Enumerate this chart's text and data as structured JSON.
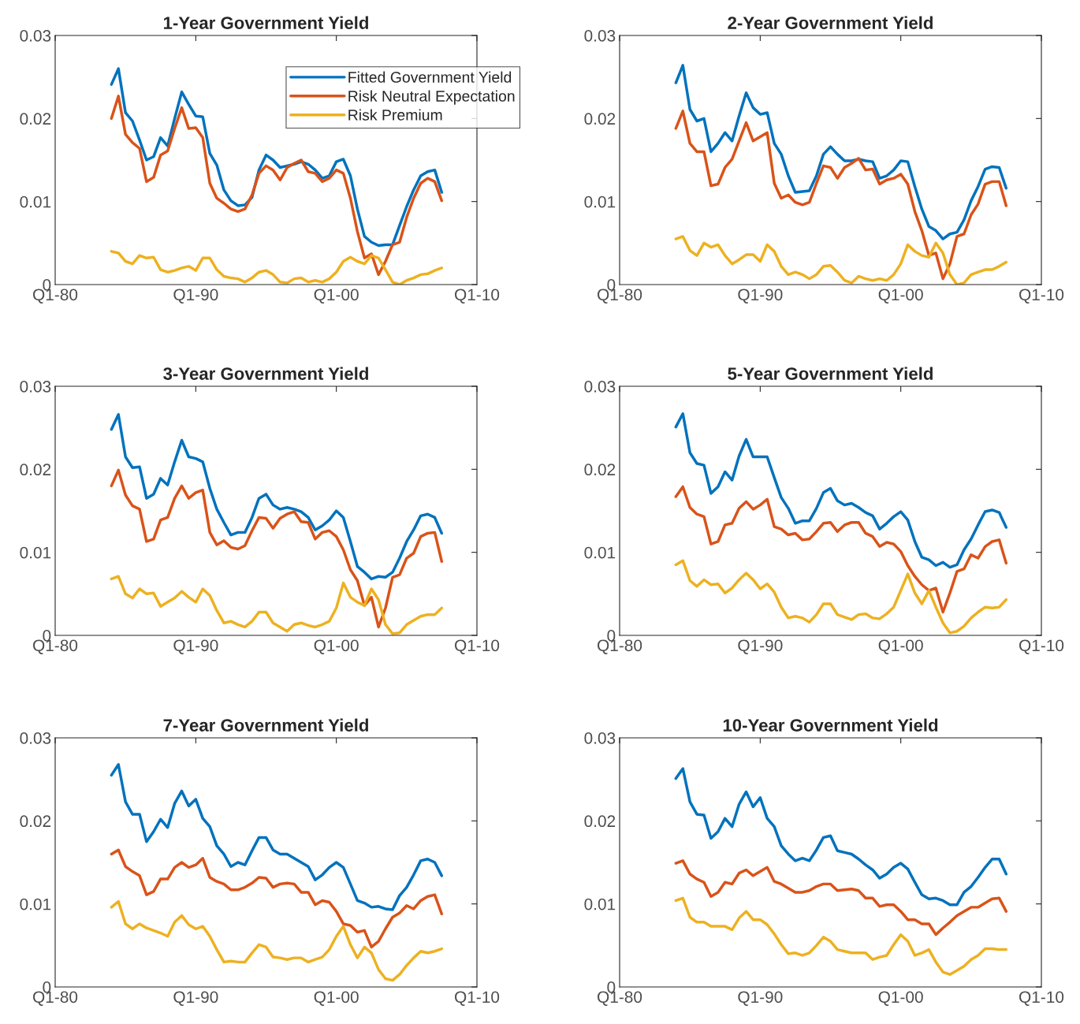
{
  "chart_data": [
    {
      "type": "line",
      "title": "1-Year Government Yield",
      "legend": "top right",
      "x": [
        "1984-01",
        "1984-07",
        "1985-01",
        "1985-07",
        "1986-01",
        "1986-07",
        "1987-01",
        "1987-07",
        "1988-01",
        "1988-07",
        "1989-01",
        "1989-07",
        "1990-01",
        "1990-07",
        "1991-01",
        "1991-07",
        "1992-01",
        "1992-07",
        "1993-01",
        "1993-07",
        "1994-01",
        "1994-07",
        "1995-01",
        "1995-07",
        "1996-01",
        "1996-07",
        "1997-01",
        "1997-07",
        "1998-01",
        "1998-07",
        "1999-01",
        "1999-07",
        "2000-01",
        "2000-07",
        "2001-01",
        "2001-07",
        "2002-01",
        "2002-07",
        "2003-01",
        "2003-07",
        "2004-01",
        "2004-07",
        "2005-01",
        "2005-07",
        "2006-01",
        "2006-07",
        "2007-01",
        "2007-07"
      ],
      "xlim": [
        "1980-01",
        "2010-01"
      ],
      "xticks": [
        {
          "value": "1980-01",
          "label": "Q1-80"
        },
        {
          "value": "1990-01",
          "label": "Q1-90"
        },
        {
          "value": "2000-01",
          "label": "Q1-00"
        },
        {
          "value": "2010-01",
          "label": "Q1-10"
        }
      ],
      "ylim": [
        0,
        0.03
      ],
      "yticks": [
        0,
        0.01,
        0.02,
        0.03
      ],
      "series": [
        {
          "name": "Fitted Government Yield",
          "color": "#0072bd",
          "values": [
            0.0241,
            0.026,
            0.0207,
            0.0197,
            0.0174,
            0.015,
            0.0154,
            0.0177,
            0.0167,
            0.02,
            0.0232,
            0.0217,
            0.0203,
            0.0202,
            0.0158,
            0.0144,
            0.0114,
            0.0101,
            0.0095,
            0.0096,
            0.0105,
            0.0138,
            0.0156,
            0.015,
            0.0141,
            0.0143,
            0.0145,
            0.0148,
            0.0145,
            0.0138,
            0.0128,
            0.0131,
            0.0148,
            0.0151,
            0.0131,
            0.0091,
            0.0058,
            0.0051,
            0.0047,
            0.0048,
            0.0048,
            0.0071,
            0.0094,
            0.0114,
            0.0131,
            0.0136,
            0.0138,
            0.0111
          ]
        },
        {
          "name": "Risk Neutral Expectation",
          "color": "#d95319",
          "values": [
            0.02,
            0.0227,
            0.0181,
            0.0171,
            0.0164,
            0.0124,
            0.0129,
            0.0156,
            0.0161,
            0.0188,
            0.0213,
            0.0188,
            0.0189,
            0.0177,
            0.0122,
            0.0104,
            0.0098,
            0.0091,
            0.0088,
            0.0091,
            0.0108,
            0.0134,
            0.0143,
            0.0138,
            0.0126,
            0.0141,
            0.0146,
            0.015,
            0.0136,
            0.0134,
            0.0124,
            0.0128,
            0.0138,
            0.0134,
            0.0104,
            0.0064,
            0.0032,
            0.0037,
            0.0012,
            0.0028,
            0.0048,
            0.0051,
            0.0081,
            0.0104,
            0.0122,
            0.0128,
            0.0124,
            0.0101
          ]
        },
        {
          "name": "Risk Premium",
          "color": "#edb120",
          "values": [
            0.004,
            0.0038,
            0.0028,
            0.0025,
            0.0035,
            0.0032,
            0.0033,
            0.0018,
            0.0015,
            0.0017,
            0.002,
            0.0022,
            0.0017,
            0.0032,
            0.0032,
            0.0018,
            0.001,
            0.0008,
            0.0007,
            0.0003,
            0.0008,
            0.0015,
            0.0017,
            0.0012,
            0.0003,
            0.0002,
            0.0007,
            0.0008,
            0.0003,
            0.0005,
            0.0003,
            0.0007,
            0.0015,
            0.0028,
            0.0033,
            0.0028,
            0.0025,
            0.0035,
            0.0032,
            0.0018,
            0.0003,
            0.0,
            0.0005,
            0.0008,
            0.0012,
            0.0013,
            0.0017,
            0.002
          ]
        }
      ]
    },
    {
      "type": "line",
      "title": "2-Year Government Yield",
      "x": [
        "1984-01",
        "1984-07",
        "1985-01",
        "1985-07",
        "1986-01",
        "1986-07",
        "1987-01",
        "1987-07",
        "1988-01",
        "1988-07",
        "1989-01",
        "1989-07",
        "1990-01",
        "1990-07",
        "1991-01",
        "1991-07",
        "1992-01",
        "1992-07",
        "1993-01",
        "1993-07",
        "1994-01",
        "1994-07",
        "1995-01",
        "1995-07",
        "1996-01",
        "1996-07",
        "1997-01",
        "1997-07",
        "1998-01",
        "1998-07",
        "1999-01",
        "1999-07",
        "2000-01",
        "2000-07",
        "2001-01",
        "2001-07",
        "2002-01",
        "2002-07",
        "2003-01",
        "2003-07",
        "2004-01",
        "2004-07",
        "2005-01",
        "2005-07",
        "2006-01",
        "2006-07",
        "2007-01",
        "2007-07"
      ],
      "xlim": [
        "1980-01",
        "2010-01"
      ],
      "xticks": [
        {
          "value": "1980-01",
          "label": "Q1-80"
        },
        {
          "value": "1990-01",
          "label": "Q1-90"
        },
        {
          "value": "2000-01",
          "label": "Q1-00"
        },
        {
          "value": "2010-01",
          "label": "Q1-10"
        }
      ],
      "ylim": [
        0,
        0.03
      ],
      "yticks": [
        0,
        0.01,
        0.02,
        0.03
      ],
      "series": [
        {
          "color": "#0072bd",
          "values": [
            0.0243,
            0.0264,
            0.0211,
            0.0197,
            0.02,
            0.016,
            0.017,
            0.0183,
            0.0173,
            0.0203,
            0.0231,
            0.0213,
            0.0205,
            0.0207,
            0.017,
            0.0157,
            0.0131,
            0.0111,
            0.0112,
            0.0113,
            0.0131,
            0.0157,
            0.0166,
            0.0157,
            0.0149,
            0.0149,
            0.0151,
            0.0149,
            0.0148,
            0.0128,
            0.0131,
            0.0138,
            0.0149,
            0.0148,
            0.0118,
            0.0091,
            0.007,
            0.0065,
            0.0055,
            0.0061,
            0.0063,
            0.0078,
            0.0101,
            0.0118,
            0.0139,
            0.0142,
            0.0141,
            0.0116
          ]
        },
        {
          "color": "#d95319",
          "values": [
            0.0188,
            0.0209,
            0.017,
            0.016,
            0.016,
            0.0119,
            0.0121,
            0.0141,
            0.0151,
            0.0173,
            0.0195,
            0.0173,
            0.0178,
            0.0183,
            0.0122,
            0.0104,
            0.0108,
            0.0099,
            0.0096,
            0.0099,
            0.0122,
            0.0143,
            0.0141,
            0.0128,
            0.0141,
            0.0146,
            0.0152,
            0.0138,
            0.0139,
            0.0121,
            0.0126,
            0.0128,
            0.0133,
            0.0121,
            0.0088,
            0.0065,
            0.0035,
            0.0038,
            0.0007,
            0.0025,
            0.0058,
            0.0061,
            0.0084,
            0.0097,
            0.0121,
            0.0124,
            0.0124,
            0.0095
          ]
        },
        {
          "color": "#edb120",
          "values": [
            0.0055,
            0.0058,
            0.0041,
            0.0035,
            0.005,
            0.0045,
            0.0048,
            0.0035,
            0.0025,
            0.003,
            0.0036,
            0.0036,
            0.0028,
            0.0048,
            0.004,
            0.0022,
            0.0012,
            0.0015,
            0.0012,
            0.0007,
            0.0012,
            0.0022,
            0.0023,
            0.0015,
            0.0005,
            0.0002,
            0.001,
            0.0007,
            0.0005,
            0.0007,
            0.0005,
            0.0012,
            0.0025,
            0.0048,
            0.004,
            0.0035,
            0.0033,
            0.005,
            0.0038,
            0.0012,
            0.0,
            0.0002,
            0.0012,
            0.0015,
            0.0018,
            0.0018,
            0.0022,
            0.0027
          ]
        }
      ]
    },
    {
      "type": "line",
      "title": "3-Year Government Yield",
      "x": [
        "1984-01",
        "1984-07",
        "1985-01",
        "1985-07",
        "1986-01",
        "1986-07",
        "1987-01",
        "1987-07",
        "1988-01",
        "1988-07",
        "1989-01",
        "1989-07",
        "1990-01",
        "1990-07",
        "1991-01",
        "1991-07",
        "1992-01",
        "1992-07",
        "1993-01",
        "1993-07",
        "1994-01",
        "1994-07",
        "1995-01",
        "1995-07",
        "1996-01",
        "1996-07",
        "1997-01",
        "1997-07",
        "1998-01",
        "1998-07",
        "1999-01",
        "1999-07",
        "2000-01",
        "2000-07",
        "2001-01",
        "2001-07",
        "2002-01",
        "2002-07",
        "2003-01",
        "2003-07",
        "2004-01",
        "2004-07",
        "2005-01",
        "2005-07",
        "2006-01",
        "2006-07",
        "2007-01",
        "2007-07"
      ],
      "xlim": [
        "1980-01",
        "2010-01"
      ],
      "xticks": [
        {
          "value": "1980-01",
          "label": "Q1-80"
        },
        {
          "value": "1990-01",
          "label": "Q1-90"
        },
        {
          "value": "2000-01",
          "label": "Q1-00"
        },
        {
          "value": "2010-01",
          "label": "Q1-10"
        }
      ],
      "ylim": [
        0,
        0.03
      ],
      "yticks": [
        0,
        0.01,
        0.02,
        0.03
      ],
      "series": [
        {
          "color": "#0072bd",
          "values": [
            0.0248,
            0.0266,
            0.0215,
            0.0202,
            0.0203,
            0.0165,
            0.017,
            0.0189,
            0.0181,
            0.0209,
            0.0235,
            0.0215,
            0.0213,
            0.0209,
            0.0177,
            0.0152,
            0.0136,
            0.0121,
            0.0124,
            0.0124,
            0.0142,
            0.0165,
            0.017,
            0.0157,
            0.0152,
            0.0154,
            0.0152,
            0.0149,
            0.0142,
            0.0127,
            0.0132,
            0.0139,
            0.015,
            0.0142,
            0.0113,
            0.0083,
            0.0076,
            0.0068,
            0.0071,
            0.007,
            0.0076,
            0.0093,
            0.0113,
            0.0127,
            0.0144,
            0.0146,
            0.0142,
            0.0123
          ]
        },
        {
          "color": "#d95319",
          "values": [
            0.018,
            0.0199,
            0.0169,
            0.0156,
            0.0152,
            0.0113,
            0.0116,
            0.0139,
            0.0142,
            0.0165,
            0.018,
            0.0165,
            0.0172,
            0.0175,
            0.0124,
            0.0109,
            0.0114,
            0.0106,
            0.0104,
            0.0108,
            0.0126,
            0.0142,
            0.0141,
            0.0129,
            0.0141,
            0.0146,
            0.0149,
            0.0137,
            0.0136,
            0.0116,
            0.0124,
            0.0126,
            0.0119,
            0.0103,
            0.0079,
            0.0066,
            0.0036,
            0.0046,
            0.001,
            0.0033,
            0.007,
            0.0073,
            0.0093,
            0.0099,
            0.0119,
            0.0123,
            0.0124,
            0.0089
          ]
        },
        {
          "color": "#edb120",
          "values": [
            0.0068,
            0.0071,
            0.005,
            0.0045,
            0.0056,
            0.005,
            0.0051,
            0.0035,
            0.004,
            0.0045,
            0.0053,
            0.0046,
            0.004,
            0.0056,
            0.0048,
            0.003,
            0.0015,
            0.0017,
            0.0013,
            0.001,
            0.0017,
            0.0028,
            0.0028,
            0.0015,
            0.001,
            0.0005,
            0.0013,
            0.0015,
            0.0012,
            0.001,
            0.0013,
            0.0017,
            0.0033,
            0.0063,
            0.0046,
            0.004,
            0.0036,
            0.0056,
            0.0043,
            0.0013,
            0.0002,
            0.0003,
            0.0013,
            0.0018,
            0.0023,
            0.0025,
            0.0025,
            0.0033
          ]
        }
      ]
    },
    {
      "type": "line",
      "title": "5-Year Government Yield",
      "x": [
        "1984-01",
        "1984-07",
        "1985-01",
        "1985-07",
        "1986-01",
        "1986-07",
        "1987-01",
        "1987-07",
        "1988-01",
        "1988-07",
        "1989-01",
        "1989-07",
        "1990-01",
        "1990-07",
        "1991-01",
        "1991-07",
        "1992-01",
        "1992-07",
        "1993-01",
        "1993-07",
        "1994-01",
        "1994-07",
        "1995-01",
        "1995-07",
        "1996-01",
        "1996-07",
        "1997-01",
        "1997-07",
        "1998-01",
        "1998-07",
        "1999-01",
        "1999-07",
        "2000-01",
        "2000-07",
        "2001-01",
        "2001-07",
        "2002-01",
        "2002-07",
        "2003-01",
        "2003-07",
        "2004-01",
        "2004-07",
        "2005-01",
        "2005-07",
        "2006-01",
        "2006-07",
        "2007-01",
        "2007-07"
      ],
      "xlim": [
        "1980-01",
        "2010-01"
      ],
      "xticks": [
        {
          "value": "1980-01",
          "label": "Q1-80"
        },
        {
          "value": "1990-01",
          "label": "Q1-90"
        },
        {
          "value": "2000-01",
          "label": "Q1-00"
        },
        {
          "value": "2010-01",
          "label": "Q1-10"
        }
      ],
      "ylim": [
        0,
        0.03
      ],
      "yticks": [
        0,
        0.01,
        0.02,
        0.03
      ],
      "series": [
        {
          "color": "#0072bd",
          "values": [
            0.0251,
            0.0267,
            0.022,
            0.0207,
            0.0205,
            0.0171,
            0.0179,
            0.0197,
            0.0187,
            0.0216,
            0.0236,
            0.0215,
            0.0215,
            0.0215,
            0.019,
            0.0166,
            0.0153,
            0.0135,
            0.0138,
            0.0138,
            0.0153,
            0.0172,
            0.0177,
            0.0162,
            0.0157,
            0.0159,
            0.0154,
            0.0148,
            0.0144,
            0.0128,
            0.0135,
            0.0143,
            0.0149,
            0.0139,
            0.0113,
            0.0094,
            0.0091,
            0.0084,
            0.0088,
            0.0082,
            0.0085,
            0.0103,
            0.0116,
            0.0133,
            0.0149,
            0.0151,
            0.0148,
            0.013
          ]
        },
        {
          "color": "#d95319",
          "values": [
            0.0167,
            0.0179,
            0.0154,
            0.0146,
            0.0143,
            0.011,
            0.0113,
            0.0133,
            0.0135,
            0.0153,
            0.0161,
            0.0152,
            0.0157,
            0.0164,
            0.0131,
            0.0128,
            0.0121,
            0.0123,
            0.0115,
            0.0116,
            0.0125,
            0.0135,
            0.0136,
            0.0125,
            0.0133,
            0.0136,
            0.0136,
            0.0123,
            0.0119,
            0.0107,
            0.0112,
            0.011,
            0.0101,
            0.0084,
            0.0071,
            0.0061,
            0.0054,
            0.0057,
            0.0028,
            0.0051,
            0.0077,
            0.008,
            0.0097,
            0.0093,
            0.0107,
            0.0113,
            0.0115,
            0.0087
          ]
        },
        {
          "color": "#edb120",
          "values": [
            0.0085,
            0.009,
            0.0066,
            0.0059,
            0.0067,
            0.0061,
            0.0062,
            0.0051,
            0.0057,
            0.0067,
            0.0075,
            0.0067,
            0.0056,
            0.0062,
            0.0052,
            0.0034,
            0.0021,
            0.0023,
            0.0021,
            0.0016,
            0.0025,
            0.0038,
            0.0038,
            0.0025,
            0.0022,
            0.0019,
            0.0025,
            0.0026,
            0.0021,
            0.002,
            0.0026,
            0.0034,
            0.0054,
            0.0074,
            0.0051,
            0.0038,
            0.0054,
            0.0034,
            0.0015,
            0.0003,
            0.0005,
            0.0011,
            0.0021,
            0.0028,
            0.0034,
            0.0033,
            0.0034,
            0.0043
          ]
        }
      ]
    },
    {
      "type": "line",
      "title": "7-Year Government Yield",
      "x": [
        "1984-01",
        "1984-07",
        "1985-01",
        "1985-07",
        "1986-01",
        "1986-07",
        "1987-01",
        "1987-07",
        "1988-01",
        "1988-07",
        "1989-01",
        "1989-07",
        "1990-01",
        "1990-07",
        "1991-01",
        "1991-07",
        "1992-01",
        "1992-07",
        "1993-01",
        "1993-07",
        "1994-01",
        "1994-07",
        "1995-01",
        "1995-07",
        "1996-01",
        "1996-07",
        "1997-01",
        "1997-07",
        "1998-01",
        "1998-07",
        "1999-01",
        "1999-07",
        "2000-01",
        "2000-07",
        "2001-01",
        "2001-07",
        "2002-01",
        "2002-07",
        "2003-01",
        "2003-07",
        "2004-01",
        "2004-07",
        "2005-01",
        "2005-07",
        "2006-01",
        "2006-07",
        "2007-01",
        "2007-07"
      ],
      "xlim": [
        "1980-01",
        "2010-01"
      ],
      "xticks": [
        {
          "value": "1980-01",
          "label": "Q1-80"
        },
        {
          "value": "1990-01",
          "label": "Q1-90"
        },
        {
          "value": "2000-01",
          "label": "Q1-00"
        },
        {
          "value": "2010-01",
          "label": "Q1-10"
        }
      ],
      "ylim": [
        0,
        0.03
      ],
      "yticks": [
        0,
        0.01,
        0.02,
        0.03
      ],
      "series": [
        {
          "color": "#0072bd",
          "values": [
            0.0255,
            0.0268,
            0.0223,
            0.0208,
            0.0208,
            0.0175,
            0.0187,
            0.0202,
            0.0192,
            0.0221,
            0.0236,
            0.0218,
            0.0226,
            0.0203,
            0.0193,
            0.017,
            0.016,
            0.0145,
            0.015,
            0.0147,
            0.0164,
            0.018,
            0.018,
            0.0165,
            0.016,
            0.016,
            0.0155,
            0.015,
            0.0145,
            0.0129,
            0.0135,
            0.0144,
            0.015,
            0.0144,
            0.0124,
            0.0104,
            0.0101,
            0.0096,
            0.0097,
            0.0094,
            0.0093,
            0.011,
            0.012,
            0.0135,
            0.0152,
            0.0154,
            0.015,
            0.0134
          ]
        },
        {
          "color": "#d95319",
          "values": [
            0.016,
            0.0165,
            0.0145,
            0.0139,
            0.0134,
            0.0111,
            0.0115,
            0.013,
            0.013,
            0.0144,
            0.015,
            0.0144,
            0.0147,
            0.0155,
            0.0132,
            0.0127,
            0.0124,
            0.0117,
            0.0117,
            0.012,
            0.0125,
            0.0132,
            0.0131,
            0.012,
            0.0124,
            0.0125,
            0.0124,
            0.0114,
            0.0114,
            0.0099,
            0.0104,
            0.0102,
            0.0091,
            0.0076,
            0.0074,
            0.0066,
            0.0068,
            0.0048,
            0.0055,
            0.007,
            0.0084,
            0.0089,
            0.0098,
            0.0094,
            0.0104,
            0.0109,
            0.0111,
            0.0088
          ]
        },
        {
          "color": "#edb120",
          "values": [
            0.0096,
            0.0103,
            0.0076,
            0.007,
            0.0076,
            0.0071,
            0.0068,
            0.0065,
            0.0061,
            0.0078,
            0.0086,
            0.0075,
            0.007,
            0.0073,
            0.0061,
            0.0045,
            0.003,
            0.0031,
            0.003,
            0.003,
            0.0041,
            0.0051,
            0.0048,
            0.0036,
            0.0035,
            0.0033,
            0.0035,
            0.0035,
            0.003,
            0.0033,
            0.0036,
            0.0045,
            0.0061,
            0.0073,
            0.0051,
            0.0035,
            0.0048,
            0.0041,
            0.0021,
            0.001,
            0.0008,
            0.0015,
            0.0026,
            0.0035,
            0.0043,
            0.0041,
            0.0043,
            0.0046
          ]
        }
      ]
    },
    {
      "type": "line",
      "title": "10-Year Government Yield",
      "x": [
        "1984-01",
        "1984-07",
        "1985-01",
        "1985-07",
        "1986-01",
        "1986-07",
        "1987-01",
        "1987-07",
        "1988-01",
        "1988-07",
        "1989-01",
        "1989-07",
        "1990-01",
        "1990-07",
        "1991-01",
        "1991-07",
        "1992-01",
        "1992-07",
        "1993-01",
        "1993-07",
        "1994-01",
        "1994-07",
        "1995-01",
        "1995-07",
        "1996-01",
        "1996-07",
        "1997-01",
        "1997-07",
        "1998-01",
        "1998-07",
        "1999-01",
        "1999-07",
        "2000-01",
        "2000-07",
        "2001-01",
        "2001-07",
        "2002-01",
        "2002-07",
        "2003-01",
        "2003-07",
        "2004-01",
        "2004-07",
        "2005-01",
        "2005-07",
        "2006-01",
        "2006-07",
        "2007-01",
        "2007-07"
      ],
      "xlim": [
        "1980-01",
        "2010-01"
      ],
      "xticks": [
        {
          "value": "1980-01",
          "label": "Q1-80"
        },
        {
          "value": "1990-01",
          "label": "Q1-90"
        },
        {
          "value": "2000-01",
          "label": "Q1-00"
        },
        {
          "value": "2010-01",
          "label": "Q1-10"
        }
      ],
      "ylim": [
        0,
        0.03
      ],
      "yticks": [
        0,
        0.01,
        0.02,
        0.03
      ],
      "series": [
        {
          "color": "#0072bd",
          "values": [
            0.0251,
            0.0263,
            0.0223,
            0.0208,
            0.0207,
            0.0179,
            0.0187,
            0.0203,
            0.0193,
            0.022,
            0.0235,
            0.0217,
            0.0228,
            0.0203,
            0.0193,
            0.017,
            0.016,
            0.0152,
            0.0155,
            0.0152,
            0.0165,
            0.018,
            0.0182,
            0.0164,
            0.0162,
            0.016,
            0.0154,
            0.0147,
            0.0141,
            0.0131,
            0.0136,
            0.0144,
            0.0149,
            0.0142,
            0.0126,
            0.0111,
            0.0106,
            0.0107,
            0.0104,
            0.0099,
            0.0099,
            0.0114,
            0.0121,
            0.0132,
            0.0144,
            0.0154,
            0.0154,
            0.0136
          ]
        },
        {
          "color": "#d95319",
          "values": [
            0.0149,
            0.0152,
            0.0136,
            0.013,
            0.0126,
            0.0109,
            0.0114,
            0.0126,
            0.0124,
            0.0137,
            0.0141,
            0.0134,
            0.0139,
            0.0144,
            0.0127,
            0.0124,
            0.0119,
            0.0114,
            0.0114,
            0.0116,
            0.0121,
            0.0124,
            0.0124,
            0.0116,
            0.0117,
            0.0118,
            0.0116,
            0.0107,
            0.0107,
            0.0097,
            0.0099,
            0.0099,
            0.0091,
            0.0081,
            0.0081,
            0.0076,
            0.0076,
            0.0063,
            0.0071,
            0.0078,
            0.0086,
            0.0091,
            0.0096,
            0.0096,
            0.0101,
            0.0106,
            0.0107,
            0.0091
          ]
        },
        {
          "color": "#edb120",
          "values": [
            0.0104,
            0.0107,
            0.0084,
            0.0078,
            0.0078,
            0.0073,
            0.0073,
            0.0073,
            0.0069,
            0.0083,
            0.0091,
            0.0081,
            0.0081,
            0.0075,
            0.0064,
            0.0051,
            0.004,
            0.0041,
            0.0038,
            0.0041,
            0.005,
            0.006,
            0.0055,
            0.0045,
            0.0043,
            0.0041,
            0.0041,
            0.0041,
            0.0033,
            0.0036,
            0.0038,
            0.0051,
            0.0063,
            0.0055,
            0.0038,
            0.0041,
            0.0045,
            0.003,
            0.0018,
            0.0015,
            0.002,
            0.0025,
            0.0033,
            0.0038,
            0.0046,
            0.0046,
            0.0045,
            0.0045
          ]
        }
      ]
    }
  ]
}
